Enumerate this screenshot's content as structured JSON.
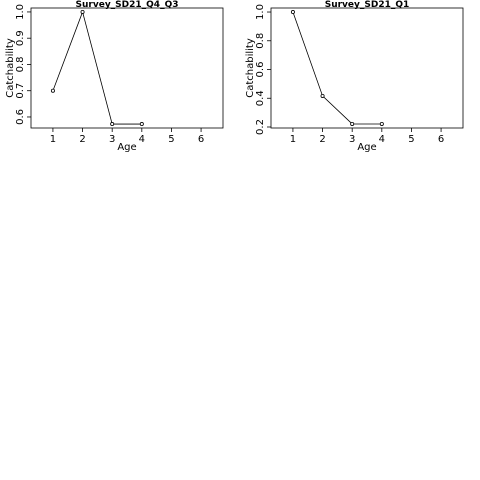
{
  "chart_data": [
    {
      "type": "line",
      "title": "Survey_SD21_Q4_Q3",
      "x_label": "Age",
      "y_label": "Catchability",
      "x": [
        1,
        2,
        3,
        4
      ],
      "values": [
        0.7,
        1.0,
        0.573,
        0.573
      ],
      "color": "#000000",
      "xlim": [
        0.26,
        6.74
      ],
      "xticks": [
        1,
        2,
        3,
        4,
        5,
        6
      ],
      "ylim": [
        0.558,
        1.015
      ],
      "yticks": [
        0.6,
        0.7,
        0.8,
        0.9,
        {
          "value": 1.0,
          "label": "1.0"
        }
      ]
    },
    {
      "type": "line",
      "title": "Survey_SD21_Q1",
      "x_label": "Age",
      "y_label": "Catchability",
      "x": [
        1,
        2,
        3,
        4
      ],
      "values": [
        1.0,
        0.416,
        0.221,
        0.221
      ],
      "color": "#000000",
      "xlim": [
        0.26,
        6.74
      ],
      "xticks": [
        1,
        2,
        3,
        4,
        5,
        6
      ],
      "ylim": [
        0.193,
        1.028
      ],
      "yticks": [
        0.2,
        0.4,
        0.6,
        0.8,
        {
          "value": 1.0,
          "label": "1.0"
        }
      ]
    }
  ]
}
